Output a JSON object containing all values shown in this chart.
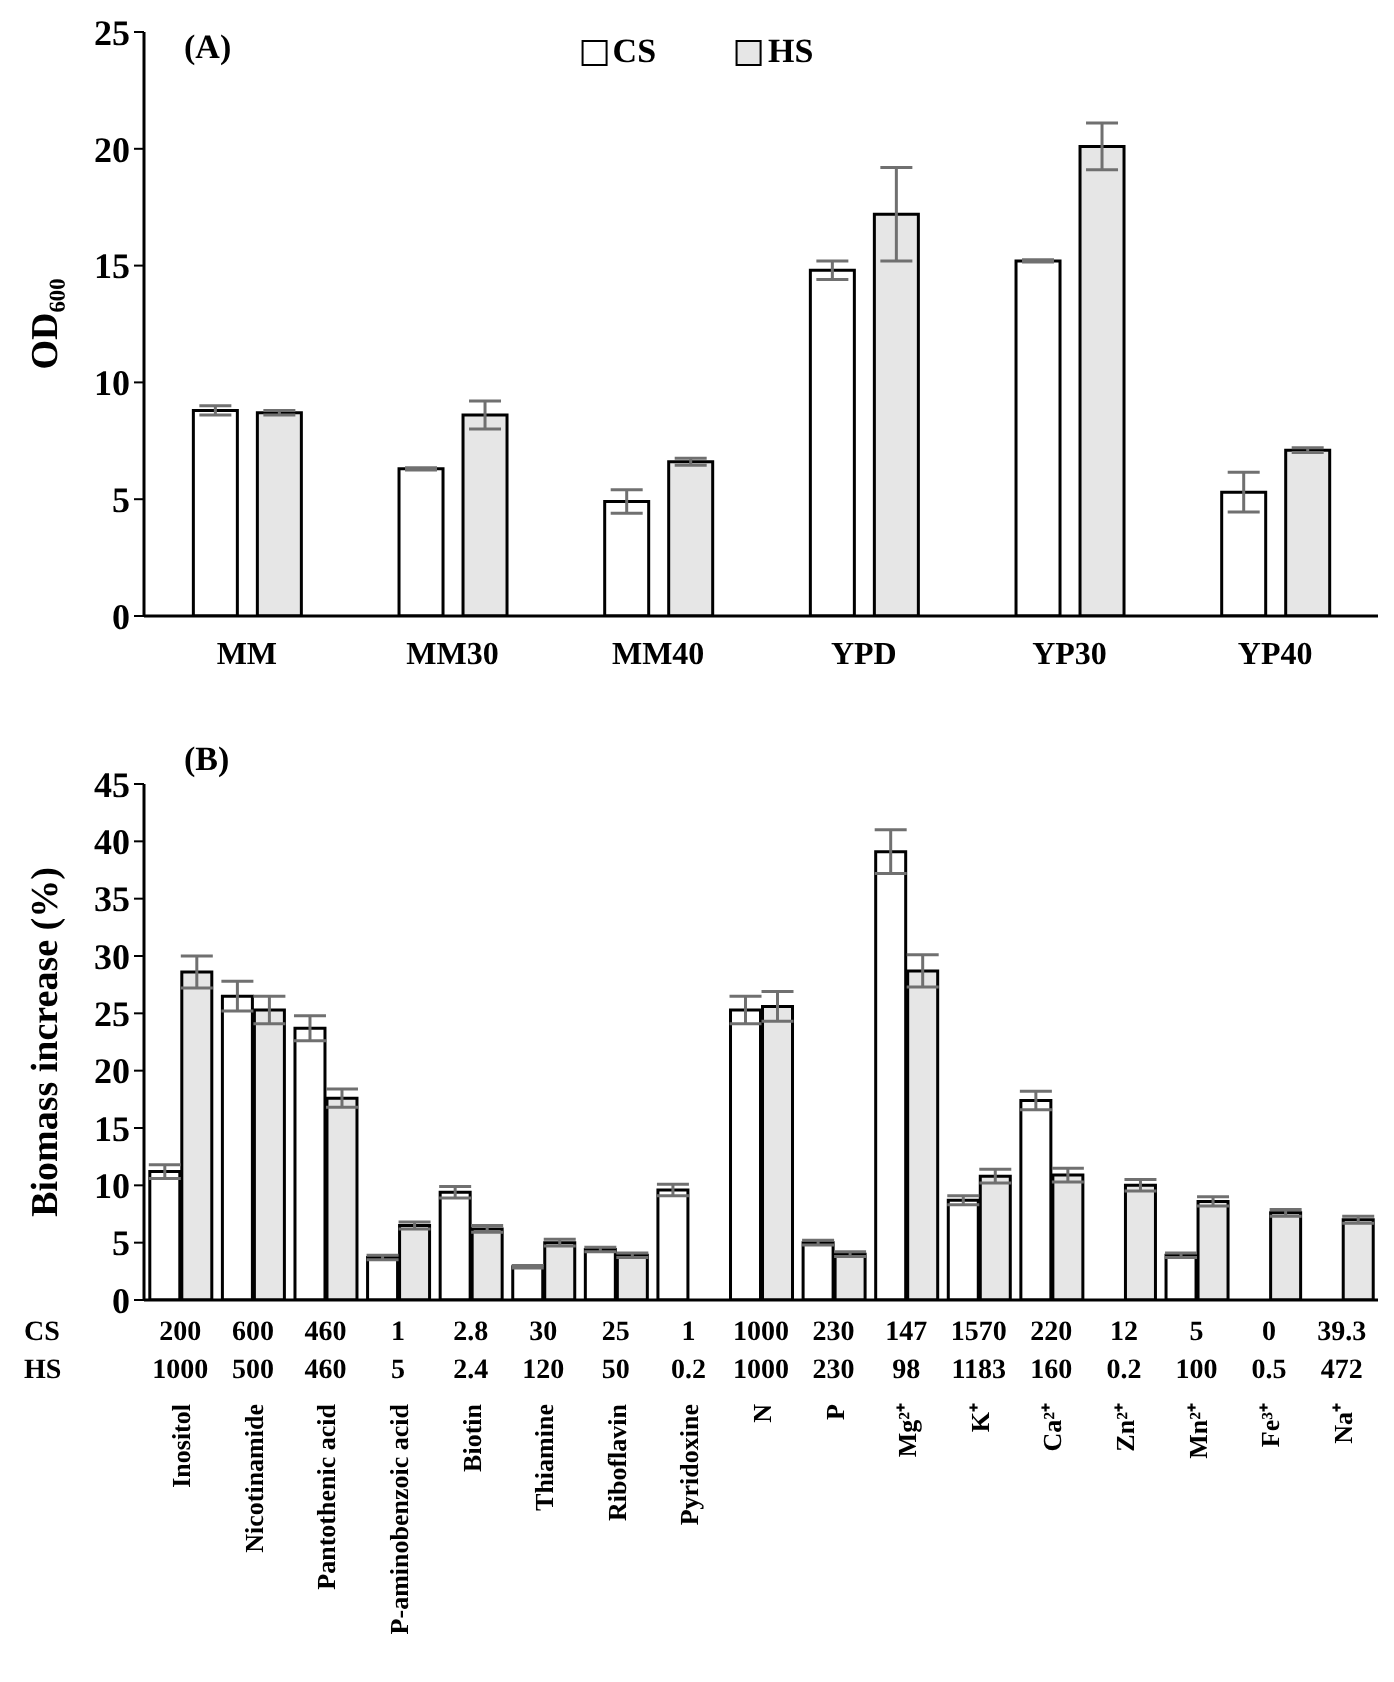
{
  "chart_data": [
    {
      "type": "bar",
      "title": "(A)",
      "ylabel": "OD₆₀₀",
      "categories": [
        "MM",
        "MM30",
        "MM40",
        "YPD",
        "YP30",
        "YP40"
      ],
      "series": [
        {
          "name": "CS",
          "color": "#ffffff",
          "values": [
            8.8,
            6.3,
            4.9,
            14.8,
            15.2,
            5.3
          ],
          "errors": [
            0.2,
            0.05,
            0.5,
            0.4,
            0.05,
            0.85
          ]
        },
        {
          "name": "HS",
          "color": "#e6e6e6",
          "values": [
            8.7,
            8.6,
            6.6,
            17.2,
            20.1,
            7.1
          ],
          "errors": [
            0.1,
            0.6,
            0.15,
            2.0,
            1.0,
            0.1
          ]
        }
      ],
      "ylim": [
        0,
        25
      ],
      "yticks": [
        0,
        5,
        10,
        15,
        20,
        25
      ],
      "grid": false,
      "legend": "top"
    },
    {
      "type": "bar",
      "title": "(B)",
      "ylabel": "Biomass increase (%)",
      "categories": [
        "Inositol",
        "Nicotinamide",
        "Pantothenic acid",
        "P-aminobenzoic acid",
        "Biotin",
        "Thiamine",
        "Riboflavin",
        "Pyridoxine",
        "N",
        "P",
        "Mg²⁺",
        "K⁺",
        "Ca²⁺",
        "Zn²⁺",
        "Mn²⁺",
        "Fe³⁺",
        "Na⁺"
      ],
      "series": [
        {
          "color": "#ffffff",
          "values": [
            11.2,
            26.5,
            23.7,
            3.7,
            9.4,
            2.9,
            4.4,
            9.6,
            25.3,
            5.0,
            39.1,
            8.7,
            17.4,
            0,
            3.9,
            null,
            null
          ],
          "errors": [
            0.6,
            1.3,
            1.1,
            0.2,
            0.5,
            0.1,
            0.2,
            0.5,
            1.2,
            0.2,
            1.9,
            0.4,
            0.8,
            null,
            0.2,
            null,
            null
          ]
        },
        {
          "color": "#e6e6e6",
          "values": [
            28.6,
            25.3,
            17.6,
            6.5,
            6.2,
            5.0,
            3.9,
            null,
            25.6,
            4.0,
            28.7,
            10.8,
            10.9,
            10.0,
            8.6,
            7.6,
            7.0
          ],
          "errors": [
            1.4,
            1.2,
            0.8,
            0.3,
            0.3,
            0.3,
            0.2,
            null,
            1.3,
            0.2,
            1.4,
            0.6,
            0.6,
            0.5,
            0.4,
            0.3,
            0.3
          ]
        }
      ],
      "ylim": [
        0,
        45
      ],
      "yticks": [
        0,
        5,
        10,
        15,
        20,
        25,
        30,
        35,
        40,
        45
      ],
      "grid": false,
      "annotations": [
        "CS",
        "200",
        "600",
        "460",
        "1",
        "2.8",
        "30",
        "25",
        "1",
        "1000",
        "230",
        "147",
        "1570",
        "220",
        "12",
        "5",
        "0",
        "39.3",
        "HS",
        "1000",
        "500",
        "460",
        "5",
        "2.4",
        "120",
        "50",
        "0.2",
        "1000",
        "230",
        "98",
        "1183",
        "160",
        "0.2",
        "100",
        "0.5",
        "472"
      ]
    }
  ]
}
